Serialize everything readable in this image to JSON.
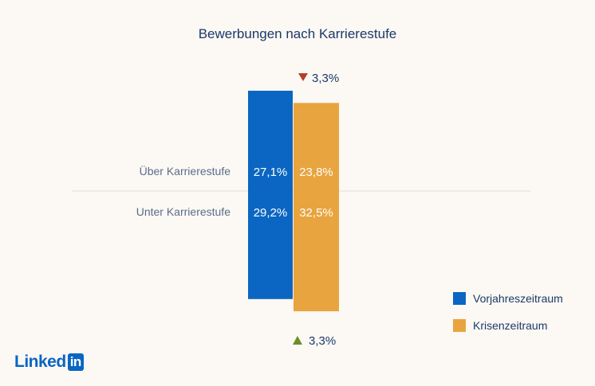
{
  "chart_data": {
    "type": "bar",
    "title": "Bewerbungen nach Karrierestufe",
    "categories": [
      "Über Karrierestufe",
      "Unter Karrierestufe"
    ],
    "series": [
      {
        "name": "Vorjahreszeitraum",
        "color": "#0a66c2",
        "values": [
          27.1,
          29.2
        ],
        "labels": [
          "27,1%",
          "29,2%"
        ]
      },
      {
        "name": "Krisenzeitraum",
        "color": "#e8a43e",
        "values": [
          23.8,
          32.5
        ],
        "labels": [
          "23,8%",
          "32,5%"
        ]
      }
    ],
    "annotations": [
      {
        "position": "top",
        "direction": "down",
        "color": "#b5402a",
        "text": "3,3%"
      },
      {
        "position": "bottom",
        "direction": "up",
        "color": "#6a8f2a",
        "text": "3,3%"
      }
    ]
  },
  "logo": {
    "text": "Linked",
    "box_text": "in"
  }
}
